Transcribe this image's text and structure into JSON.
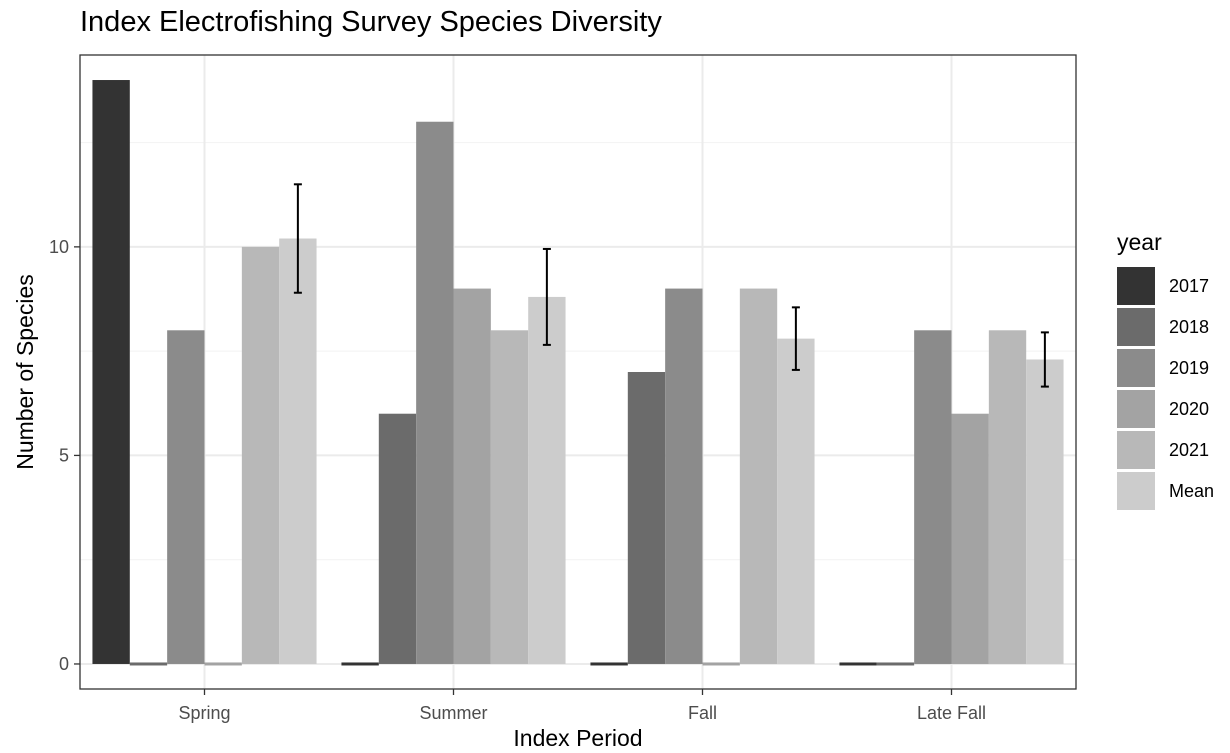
{
  "chart_data": {
    "type": "bar",
    "title": "Index Electrofishing Survey Species Diversity",
    "xlabel": "Index Period",
    "ylabel": "Number of Species",
    "categories": [
      "Spring",
      "Summer",
      "Fall",
      "Late Fall"
    ],
    "y_ticks": [
      "0",
      "5",
      "10"
    ],
    "ylim": [
      -0.6,
      14.6
    ],
    "grid": true,
    "legend": {
      "title": "year",
      "position": "right"
    },
    "series": [
      {
        "name": "2017",
        "color": "#333333",
        "values": [
          14,
          0,
          0,
          0
        ]
      },
      {
        "name": "2018",
        "color": "#6b6b6b",
        "values": [
          0,
          6,
          7,
          0
        ]
      },
      {
        "name": "2019",
        "color": "#8b8b8b",
        "values": [
          8,
          13,
          9,
          8
        ]
      },
      {
        "name": "2020",
        "color": "#a3a3a3",
        "values": [
          0,
          9,
          0,
          6
        ]
      },
      {
        "name": "2021",
        "color": "#b8b8b8",
        "values": [
          10,
          8,
          9,
          8
        ]
      },
      {
        "name": "Mean",
        "color": "#cccccc",
        "values": [
          10.2,
          8.8,
          7.8,
          7.3
        ],
        "error_low": [
          8.9,
          7.65,
          7.05,
          6.65
        ],
        "error_high": [
          11.5,
          9.95,
          8.55,
          7.95
        ]
      }
    ]
  }
}
